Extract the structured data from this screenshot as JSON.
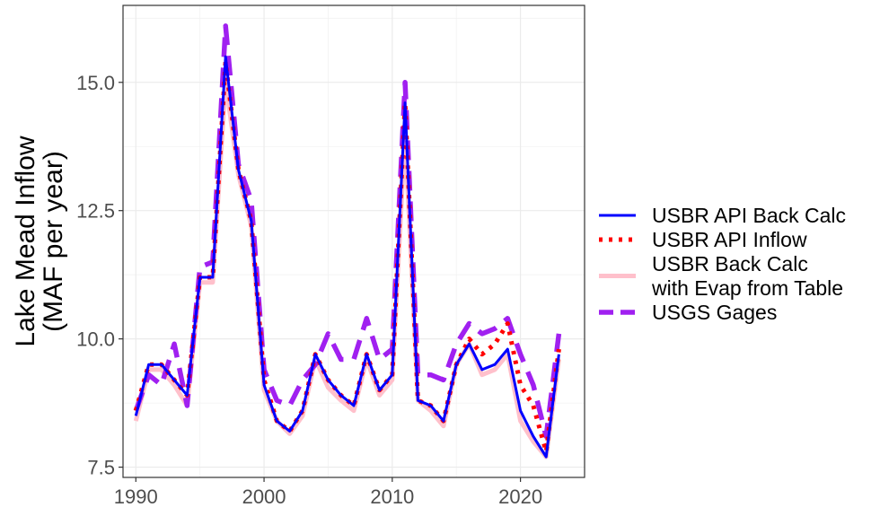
{
  "chart_data": {
    "type": "line",
    "title": "",
    "xlabel": "",
    "ylabel_lines": [
      "Lake Mead Inflow",
      "(MAF per year)"
    ],
    "xlim": [
      1989,
      2025
    ],
    "ylim": [
      7.3,
      16.5
    ],
    "x_ticks": [
      1990,
      2000,
      2010,
      2020
    ],
    "y_ticks": [
      7.5,
      10.0,
      12.5,
      15.0
    ],
    "y_tick_labels": [
      "7.5",
      "10.0",
      "12.5",
      "15.0"
    ],
    "grid": true,
    "legend_position": "right",
    "x": [
      1990,
      1991,
      1992,
      1993,
      1994,
      1995,
      1996,
      1997,
      1998,
      1999,
      2000,
      2001,
      2002,
      2003,
      2004,
      2005,
      2006,
      2007,
      2008,
      2009,
      2010,
      2011,
      2012,
      2013,
      2014,
      2015,
      2016,
      2017,
      2018,
      2019,
      2020,
      2021,
      2022,
      2023
    ],
    "series": [
      {
        "name": "USBR Back Calc with Evap from Table",
        "label_lines": [
          "USBR Back Calc",
          "with Evap from Table"
        ],
        "color": "#ffc0cb",
        "style": "solid",
        "values": [
          8.4,
          9.4,
          9.4,
          9.1,
          8.7,
          11.1,
          11.1,
          15.0,
          13.2,
          12.2,
          9.0,
          8.4,
          8.15,
          8.5,
          9.6,
          9.05,
          8.8,
          8.6,
          9.6,
          8.9,
          9.2,
          14.0,
          8.8,
          8.6,
          8.3,
          9.5,
          9.9,
          9.3,
          9.4,
          9.7,
          8.4,
          8.0,
          7.7,
          9.6
        ]
      },
      {
        "name": "USGS Gages",
        "label_lines": [
          "USGS Gages"
        ],
        "color": "#a020f0",
        "style": "dashed",
        "values": [
          8.6,
          9.3,
          9.1,
          9.9,
          8.7,
          11.4,
          11.5,
          16.1,
          13.4,
          12.7,
          9.4,
          8.8,
          8.7,
          9.2,
          9.5,
          10.1,
          9.6,
          9.6,
          10.4,
          9.6,
          9.8,
          15.0,
          9.3,
          9.3,
          9.2,
          9.9,
          10.3,
          10.1,
          10.2,
          10.4,
          9.7,
          9.1,
          8.1,
          10.1
        ]
      },
      {
        "name": "USBR API Inflow",
        "label_lines": [
          "USBR API Inflow"
        ],
        "color": "#ff0000",
        "style": "dotted",
        "values": [
          8.6,
          9.5,
          9.5,
          9.2,
          8.9,
          11.2,
          11.2,
          15.4,
          13.3,
          12.3,
          9.2,
          8.4,
          8.2,
          8.6,
          9.7,
          9.2,
          8.9,
          8.7,
          9.7,
          9.0,
          9.3,
          14.6,
          8.8,
          8.7,
          8.4,
          9.5,
          10.0,
          9.7,
          9.9,
          10.3,
          9.1,
          8.7,
          7.8,
          9.8
        ]
      },
      {
        "name": "USBR API Back Calc",
        "label_lines": [
          "USBR API Back Calc"
        ],
        "color": "#0000ff",
        "style": "solid",
        "values": [
          8.5,
          9.5,
          9.5,
          9.2,
          8.9,
          11.2,
          11.2,
          15.5,
          13.3,
          12.3,
          9.1,
          8.4,
          8.2,
          8.6,
          9.7,
          9.2,
          8.9,
          8.7,
          9.7,
          9.0,
          9.3,
          14.6,
          8.8,
          8.7,
          8.4,
          9.5,
          9.9,
          9.4,
          9.5,
          9.8,
          8.6,
          8.1,
          7.7,
          9.7
        ]
      }
    ],
    "legend_order": [
      "USBR API Back Calc",
      "USBR API Inflow",
      "USBR Back Calc with Evap from Table",
      "USGS Gages"
    ]
  }
}
